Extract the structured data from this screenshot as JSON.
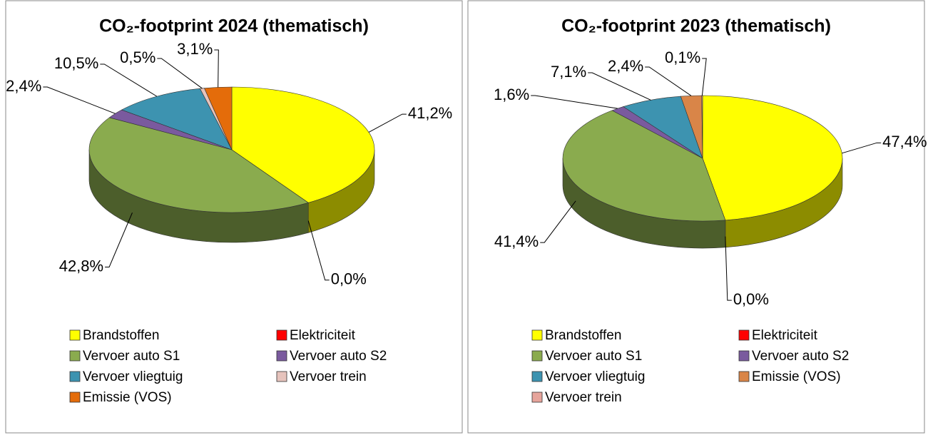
{
  "chart_data": [
    {
      "type": "pie",
      "title": "CO₂-footprint 2024 (thematisch)",
      "categories": [
        "Brandstoffen",
        "Elektriciteit",
        "Vervoer auto S1",
        "Vervoer auto S2",
        "Vervoer vliegtuig",
        "Vervoer trein",
        "Emissie (VOS)"
      ],
      "values": [
        41.2,
        0.0,
        42.8,
        2.4,
        10.5,
        0.5,
        3.1
      ],
      "value_labels": [
        "41,2%",
        "0,0%",
        "42,8%",
        "2,4%",
        "10,5%",
        "0,5%",
        "3,1%"
      ],
      "colors": [
        "#ffff00",
        "#ff0000",
        "#8aab4e",
        "#7a5a9e",
        "#3d93b0",
        "#e6c3bc",
        "#e46c0a"
      ]
    },
    {
      "type": "pie",
      "title": "CO₂-footprint 2023 (thematisch)",
      "categories": [
        "Brandstoffen",
        "Elektriciteit",
        "Vervoer auto S1",
        "Vervoer auto S2",
        "Vervoer vliegtuig",
        "Emissie (VOS)",
        "Vervoer trein"
      ],
      "values": [
        47.4,
        0.0,
        41.4,
        1.6,
        7.1,
        2.4,
        0.1
      ],
      "value_labels": [
        "47,4%",
        "0,0%",
        "41,4%",
        "1,6%",
        "7,1%",
        "2,4%",
        "0,1%"
      ],
      "colors": [
        "#ffff00",
        "#ff0000",
        "#8aab4e",
        "#7a5a9e",
        "#3d93b0",
        "#d98548",
        "#e6a49b"
      ]
    }
  ]
}
